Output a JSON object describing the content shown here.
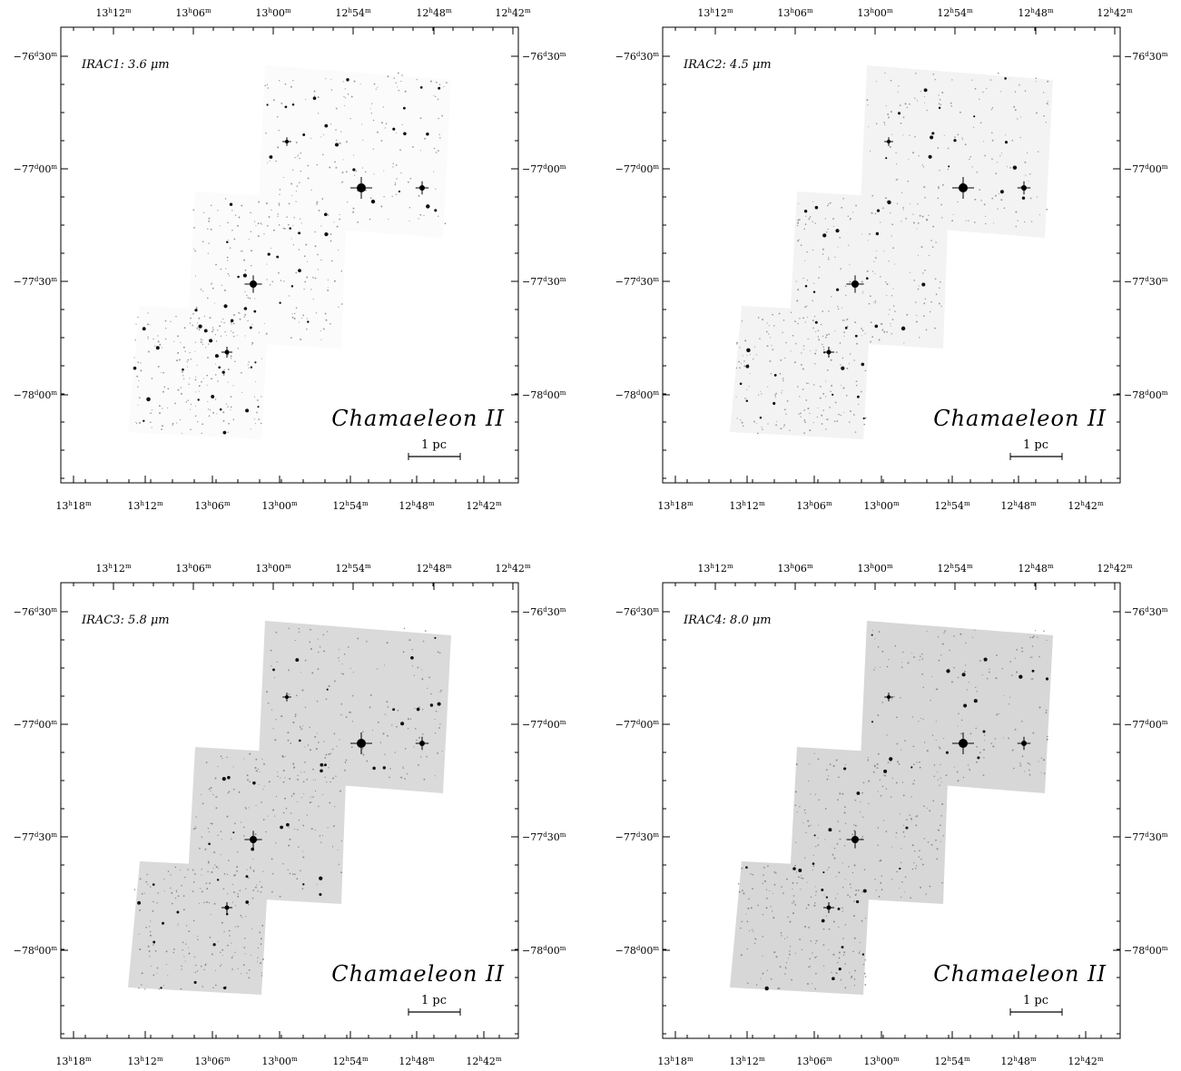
{
  "figure": {
    "object_name": "Chamaeleon II",
    "scale_bar_label": "1 pc",
    "colors": {
      "background": "#ffffff",
      "frame": "#000000",
      "stars": "#000000"
    },
    "axes": {
      "top_ticks": [
        "13h12m",
        "13h06m",
        "13h00m",
        "12h54m",
        "12h48m",
        "12h42m"
      ],
      "bottom_ticks": [
        "13h18m",
        "13h12m",
        "13h06m",
        "13h00m",
        "12h54m",
        "12h48m",
        "12h42m"
      ],
      "dec_ticks": [
        "-76d30m",
        "-77d00m",
        "-77d30m",
        "-78d00m"
      ]
    }
  },
  "panels": [
    {
      "id": "irac1",
      "band_label": "IRAC1: 3.6 μm",
      "mosaic_shade": "#fbfbfb",
      "bright_stars": 60
    },
    {
      "id": "irac2",
      "band_label": "IRAC2: 4.5 μm",
      "mosaic_shade": "#f3f3f3",
      "bright_stars": 45
    },
    {
      "id": "irac3",
      "band_label": "IRAC3: 5.8 μm",
      "mosaic_shade": "#dadada",
      "bright_stars": 40
    },
    {
      "id": "irac4",
      "band_label": "IRAC4: 8.0 μm",
      "mosaic_shade": "#d7d7d7",
      "bright_stars": 38
    }
  ]
}
